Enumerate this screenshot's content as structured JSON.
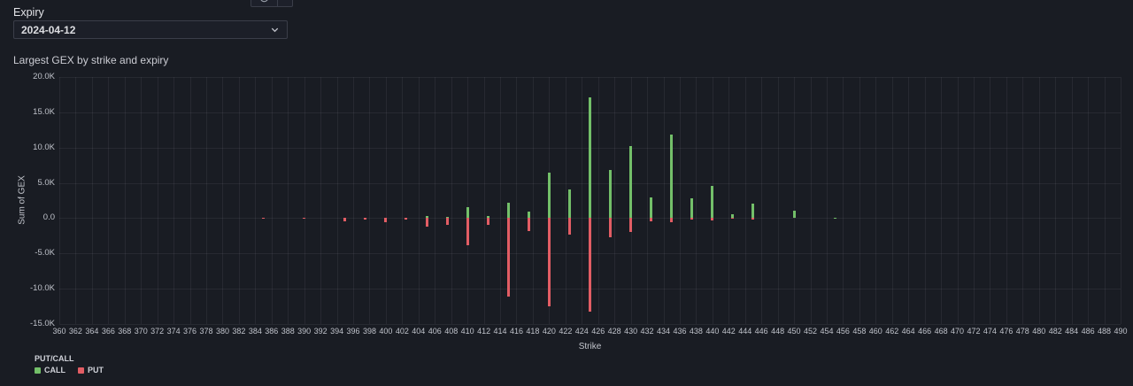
{
  "controls": {
    "expiry_label": "Expiry",
    "expiry_value": "2024-04-12"
  },
  "panel_title": "Largest GEX by strike and expiry",
  "chart_data": {
    "type": "bar",
    "title": "Largest GEX by strike and expiry",
    "xlabel": "Strike",
    "ylabel": "Sum of GEX",
    "x_axis": {
      "min": 360,
      "max": 490,
      "tick_step": 2
    },
    "y_axis": {
      "min": -15000,
      "max": 20000,
      "tick_step": 5000,
      "zero_label": "0.0"
    },
    "grid": true,
    "legend": {
      "title": "PUT/CALL",
      "position": "bottom-left",
      "items": [
        {
          "label": "CALL",
          "color": "#73bf69"
        },
        {
          "label": "PUT",
          "color": "#e25d64"
        }
      ]
    },
    "points": [
      {
        "strike": 385,
        "call": 0,
        "put": -60
      },
      {
        "strike": 390,
        "call": 0,
        "put": -100
      },
      {
        "strike": 395,
        "call": 0,
        "put": -400
      },
      {
        "strike": 397.5,
        "call": 0,
        "put": -250
      },
      {
        "strike": 400,
        "call": 0,
        "put": -550
      },
      {
        "strike": 402.5,
        "call": 0,
        "put": -250
      },
      {
        "strike": 405,
        "call": 300,
        "put": -1200
      },
      {
        "strike": 407.5,
        "call": 150,
        "put": -1000
      },
      {
        "strike": 410,
        "call": 1500,
        "put": -3800
      },
      {
        "strike": 412.5,
        "call": 350,
        "put": -950
      },
      {
        "strike": 415,
        "call": 2200,
        "put": -11100
      },
      {
        "strike": 417.5,
        "call": 900,
        "put": -1800
      },
      {
        "strike": 420,
        "call": 6500,
        "put": -12500
      },
      {
        "strike": 422.5,
        "call": 4100,
        "put": -2300
      },
      {
        "strike": 425,
        "call": 17100,
        "put": -13200
      },
      {
        "strike": 427.5,
        "call": 6800,
        "put": -2700
      },
      {
        "strike": 430,
        "call": 10200,
        "put": -1900
      },
      {
        "strike": 432.5,
        "call": 3000,
        "put": -400
      },
      {
        "strike": 435,
        "call": 11800,
        "put": -600
      },
      {
        "strike": 437.5,
        "call": 2800,
        "put": -200
      },
      {
        "strike": 440,
        "call": 4600,
        "put": -300
      },
      {
        "strike": 442.5,
        "call": 600,
        "put": -100
      },
      {
        "strike": 445,
        "call": 2100,
        "put": -150
      },
      {
        "strike": 450,
        "call": 1000,
        "put": 0
      },
      {
        "strike": 455,
        "call": 80,
        "put": 0
      }
    ]
  }
}
